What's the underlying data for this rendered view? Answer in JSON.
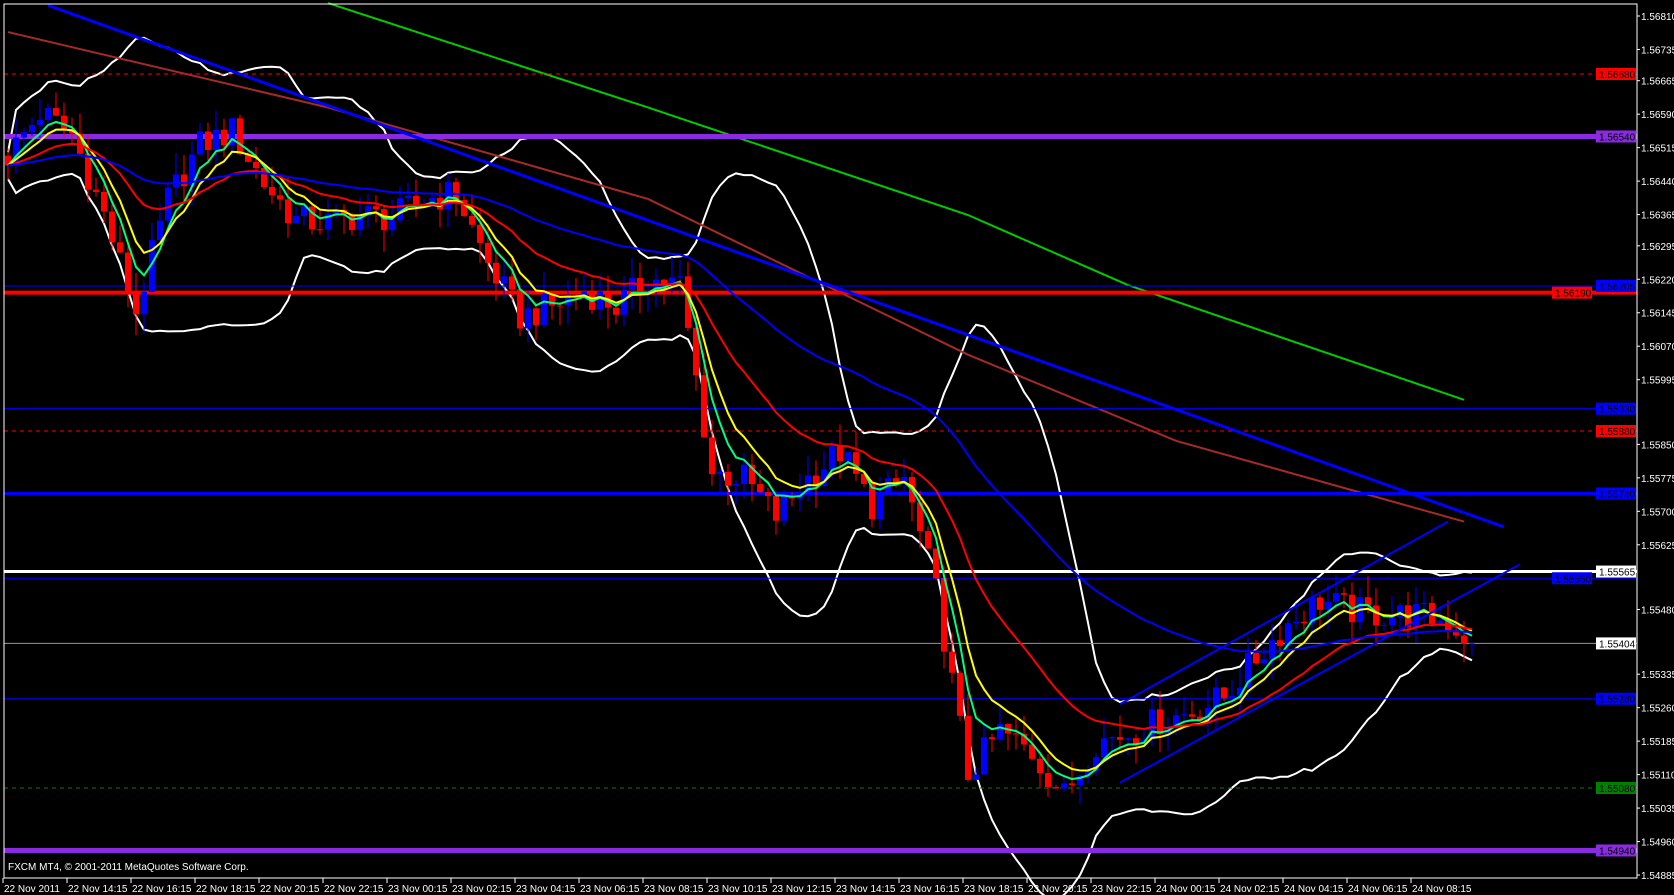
{
  "footer": {
    "copyright": "FXCM MT4, © 2001-2011 MetaQuotes Software Corp."
  },
  "colors": {
    "background": "#000000",
    "bull": "#0000ff",
    "bear": "#ff0000",
    "grid_border": "#ffffff"
  },
  "chart_data": {
    "type": "candlestick",
    "timeframe_minutes": 15,
    "first_bar": "22 Nov 12:15",
    "ylim": [
      1.54885,
      1.5681
    ],
    "grid": false,
    "x_tick_labels": [
      "22 Nov 2011",
      "22 Nov 14:15",
      "22 Nov 16:15",
      "22 Nov 18:15",
      "22 Nov 20:15",
      "22 Nov 22:15",
      "23 Nov 00:15",
      "23 Nov 02:15",
      "23 Nov 04:15",
      "23 Nov 06:15",
      "23 Nov 08:15",
      "23 Nov 10:15",
      "23 Nov 12:15",
      "23 Nov 14:15",
      "23 Nov 16:15",
      "23 Nov 18:15",
      "23 Nov 20:15",
      "23 Nov 22:15",
      "24 Nov 00:15",
      "24 Nov 02:15",
      "24 Nov 04:15",
      "24 Nov 06:15",
      "24 Nov 08:15"
    ],
    "y_tick_labels": [
      "1.56810",
      "1.56735",
      "1.56665",
      "1.56590",
      "1.56515",
      "1.56440",
      "1.56365",
      "1.56295",
      "1.56220",
      "1.56145",
      "1.56070",
      "1.55995",
      "1.55850",
      "1.55775",
      "1.55700",
      "1.55625",
      "1.55480",
      "1.55335",
      "1.55260",
      "1.55185",
      "1.55110",
      "1.55035",
      "1.54960",
      "1.54885"
    ],
    "closes": [
      [
        "22 Nov 12:15",
        1.56497
      ],
      [
        "22 Nov 13:15",
        1.56593
      ],
      [
        "22 Nov 14:15",
        1.56545
      ],
      [
        "22 Nov 15:15",
        1.56364
      ],
      [
        "22 Nov 16:15",
        1.56147
      ],
      [
        "22 Nov 17:15",
        1.564
      ],
      [
        "22 Nov 18:15",
        1.56521
      ],
      [
        "22 Nov 19:15",
        1.56552
      ],
      [
        "22 Nov 20:15",
        1.56436
      ],
      [
        "22 Nov 21:15",
        1.56352
      ],
      [
        "22 Nov 22:15",
        1.56347
      ],
      [
        "22 Nov 23:15",
        1.56364
      ],
      [
        "23 Nov 00:15",
        1.56357
      ],
      [
        "23 Nov 01:15",
        1.564
      ],
      [
        "23 Nov 02:15",
        1.56412
      ],
      [
        "23 Nov 03:15",
        1.56256
      ],
      [
        "23 Nov 04:15",
        1.56135
      ],
      [
        "23 Nov 05:15",
        1.56159
      ],
      [
        "23 Nov 06:15",
        1.56195
      ],
      [
        "23 Nov 07:15",
        1.56159
      ],
      [
        "23 Nov 08:15",
        1.5622
      ],
      [
        "23 Nov 09:15",
        1.56208
      ],
      [
        "23 Nov 10:15",
        1.55786
      ],
      [
        "23 Nov 11:15",
        1.55774
      ],
      [
        "23 Nov 12:15",
        1.55689
      ],
      [
        "23 Nov 13:15",
        1.55774
      ],
      [
        "23 Nov 14:15",
        1.55834
      ],
      [
        "23 Nov 15:15",
        1.55713
      ],
      [
        "23 Nov 16:15",
        1.55774
      ],
      [
        "23 Nov 17:15",
        1.55521
      ],
      [
        "23 Nov 18:15",
        1.55111
      ],
      [
        "23 Nov 19:15",
        1.55207
      ],
      [
        "23 Nov 20:15",
        1.55159
      ],
      [
        "23 Nov 21:15",
        1.55063
      ],
      [
        "23 Nov 22:15",
        1.55183
      ],
      [
        "23 Nov 23:15",
        1.55203
      ],
      [
        "24 Nov 00:15",
        1.55231
      ],
      [
        "24 Nov 01:15",
        1.55251
      ],
      [
        "24 Nov 02:15",
        1.55284
      ],
      [
        "24 Nov 03:15",
        1.55371
      ],
      [
        "24 Nov 04:15",
        1.55448
      ],
      [
        "24 Nov 05:15",
        1.55501
      ],
      [
        "24 Nov 06:15",
        1.55477
      ],
      [
        "24 Nov 07:15",
        1.55468
      ],
      [
        "24 Nov 08:15",
        1.55468
      ],
      [
        "24 Nov 09:15",
        1.55453
      ],
      [
        "24 Nov 10:00",
        1.55404
      ]
    ],
    "moving_averages": [
      {
        "period": 5,
        "color": "#00ff80"
      },
      {
        "period": 8,
        "color": "#ffff00"
      },
      {
        "period": 21,
        "color": "#ff0000"
      },
      {
        "period": 55,
        "color": "#0000ff"
      }
    ],
    "slow_averages": [
      {
        "color": "#a52a2a",
        "points": [
          [
            "22 Nov 12:15",
            1.56774
          ],
          [
            "22 Nov 22:15",
            1.56605
          ],
          [
            "23 Nov 08:15",
            1.564
          ],
          [
            "23 Nov 18:15",
            1.56051
          ],
          [
            "24 Nov 00:45",
            1.55858
          ],
          [
            "24 Nov 09:45",
            1.55677
          ]
        ]
      },
      {
        "color": "#00cc00",
        "points": [
          [
            "22 Nov 22:15",
            1.56839
          ],
          [
            "23 Nov 08:15",
            1.56605
          ],
          [
            "23 Nov 18:15",
            1.56364
          ],
          [
            "23 Nov 23:15",
            1.56207
          ],
          [
            "24 Nov 09:45",
            1.5595
          ]
        ]
      }
    ],
    "bollinger": {
      "period": 20,
      "deviation": 2,
      "color": "#ffffff"
    },
    "trendlines": [
      {
        "color": "#0000ff",
        "width": 3,
        "points": [
          [
            "22 Nov 13:30",
            1.56834
          ],
          [
            "24 Nov 11:00",
            1.55665
          ]
        ]
      },
      {
        "color": "#0000ff",
        "width": 2,
        "points": [
          [
            "23 Nov 23:00",
            1.55268
          ],
          [
            "24 Nov 09:15",
            1.55677
          ]
        ]
      },
      {
        "color": "#0000ff",
        "width": 2,
        "points": [
          [
            "23 Nov 23:00",
            1.55092
          ],
          [
            "24 Nov 11:30",
            1.55581
          ]
        ]
      }
    ],
    "levels": [
      {
        "price": 1.5668,
        "label": "1.56680",
        "color": "#ff0000",
        "style": "dashed",
        "width": 1
      },
      {
        "price": 1.5654,
        "label": "1.56540",
        "color": "#8a2be2",
        "style": "solid",
        "width": 5
      },
      {
        "price": 1.56205,
        "label": "1.56205",
        "color": "#0000ff",
        "style": "solid",
        "width": 1
      },
      {
        "price": 1.5619,
        "label": "1.56190",
        "color": "#ff0000",
        "style": "solid",
        "width": 4
      },
      {
        "price": 1.5593,
        "label": "1.55930",
        "color": "#0000ff",
        "style": "solid",
        "width": 1
      },
      {
        "price": 1.5588,
        "label": "1.55880",
        "color": "#ff0000",
        "style": "dashed",
        "width": 1
      },
      {
        "price": 1.5574,
        "label": "1.55740",
        "color": "#0000ff",
        "style": "solid",
        "width": 3
      },
      {
        "price": 1.55565,
        "label": "1.55565",
        "color": "#ffffff",
        "style": "solid",
        "width": 3
      },
      {
        "price": 1.5555,
        "label": "1.55550",
        "color": "#0000ff",
        "style": "solid",
        "width": 1
      },
      {
        "price": 1.55404,
        "label": "1.55404",
        "color": "#8899aa",
        "style": "solid",
        "width": 1,
        "current": true
      },
      {
        "price": 1.5528,
        "label": "1.55280",
        "color": "#0000ff",
        "style": "solid",
        "width": 1
      },
      {
        "price": 1.5508,
        "label": "1.55080",
        "color": "#008000",
        "style": "dashed",
        "width": 1
      },
      {
        "price": 1.5494,
        "label": "1.54940",
        "color": "#8a2be2",
        "style": "solid",
        "width": 5
      }
    ]
  }
}
